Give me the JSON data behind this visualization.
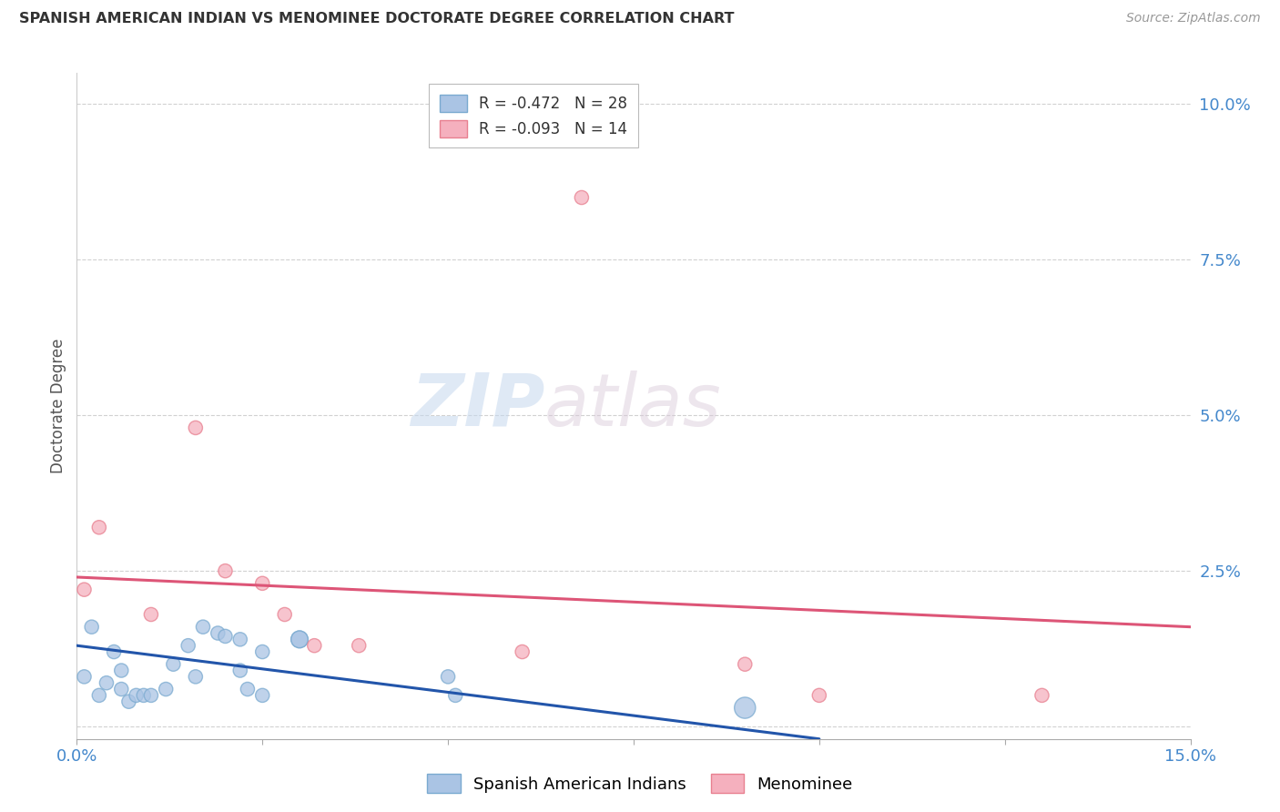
{
  "title": "SPANISH AMERICAN INDIAN VS MENOMINEE DOCTORATE DEGREE CORRELATION CHART",
  "source": "Source: ZipAtlas.com",
  "ylabel": "Doctorate Degree",
  "xlim": [
    0.0,
    0.15
  ],
  "ylim": [
    -0.002,
    0.105
  ],
  "xticks": [
    0.0,
    0.025,
    0.05,
    0.075,
    0.1,
    0.125,
    0.15
  ],
  "xtick_labels": [
    "0.0%",
    "",
    "",
    "",
    "",
    "",
    "15.0%"
  ],
  "yticks": [
    0.0,
    0.025,
    0.05,
    0.075,
    0.1
  ],
  "ytick_labels": [
    "",
    "2.5%",
    "5.0%",
    "7.5%",
    "10.0%"
  ],
  "legend1_r": "-0.472",
  "legend1_n": "28",
  "legend2_r": "-0.093",
  "legend2_n": "14",
  "blue_fill": "#aac4e4",
  "blue_edge": "#7aaad0",
  "pink_fill": "#f5b0be",
  "pink_edge": "#e88090",
  "blue_line_color": "#2255aa",
  "pink_line_color": "#dd5577",
  "watermark_zip": "ZIP",
  "watermark_atlas": "atlas",
  "background_color": "#ffffff",
  "grid_color": "#cccccc",
  "blue_scatter_x": [
    0.001,
    0.002,
    0.003,
    0.004,
    0.005,
    0.006,
    0.006,
    0.007,
    0.008,
    0.009,
    0.01,
    0.012,
    0.013,
    0.015,
    0.016,
    0.017,
    0.019,
    0.02,
    0.022,
    0.022,
    0.023,
    0.025,
    0.025,
    0.03,
    0.03,
    0.05,
    0.051,
    0.09
  ],
  "blue_scatter_y": [
    0.008,
    0.016,
    0.005,
    0.007,
    0.012,
    0.006,
    0.009,
    0.004,
    0.005,
    0.005,
    0.005,
    0.006,
    0.01,
    0.013,
    0.008,
    0.016,
    0.015,
    0.0145,
    0.014,
    0.009,
    0.006,
    0.005,
    0.012,
    0.014,
    0.014,
    0.008,
    0.005,
    0.003
  ],
  "blue_scatter_sizes": [
    120,
    120,
    120,
    120,
    120,
    120,
    120,
    120,
    120,
    120,
    120,
    120,
    120,
    120,
    120,
    120,
    120,
    120,
    120,
    120,
    120,
    120,
    120,
    180,
    180,
    120,
    120,
    280
  ],
  "pink_scatter_x": [
    0.001,
    0.003,
    0.01,
    0.016,
    0.02,
    0.025,
    0.028,
    0.032,
    0.038,
    0.06,
    0.068,
    0.09,
    0.1,
    0.13
  ],
  "pink_scatter_y": [
    0.022,
    0.032,
    0.018,
    0.048,
    0.025,
    0.023,
    0.018,
    0.013,
    0.013,
    0.012,
    0.085,
    0.01,
    0.005,
    0.005
  ],
  "pink_scatter_sizes": [
    120,
    120,
    120,
    120,
    120,
    120,
    120,
    120,
    120,
    120,
    120,
    120,
    120,
    120
  ],
  "blue_line_x": [
    0.0,
    0.1
  ],
  "blue_line_y": [
    0.013,
    -0.002
  ],
  "pink_line_x": [
    0.0,
    0.15
  ],
  "pink_line_y": [
    0.024,
    0.016
  ]
}
